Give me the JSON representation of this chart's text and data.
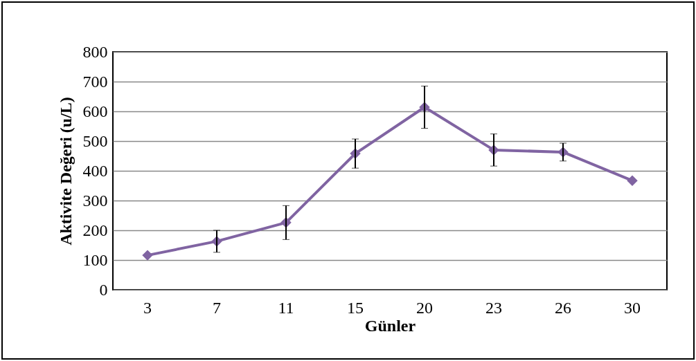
{
  "chart_data": {
    "type": "line",
    "xlabel": "Günler",
    "ylabel": "Aktivite Değeri (u/L)",
    "categories": [
      "3",
      "7",
      "11",
      "15",
      "20",
      "23",
      "26",
      "30"
    ],
    "series": [
      {
        "color": "#8064a2",
        "values": [
          116,
          163,
          226,
          458,
          614,
          470,
          463,
          367
        ],
        "errors": [
          null,
          37,
          57,
          49,
          71,
          54,
          30,
          null
        ]
      }
    ],
    "ylim": [
      0,
      800
    ],
    "yticks": [
      0,
      100,
      200,
      300,
      400,
      500,
      600,
      700,
      800
    ],
    "grid": "y",
    "marker": "diamond",
    "line_style": "solid"
  }
}
